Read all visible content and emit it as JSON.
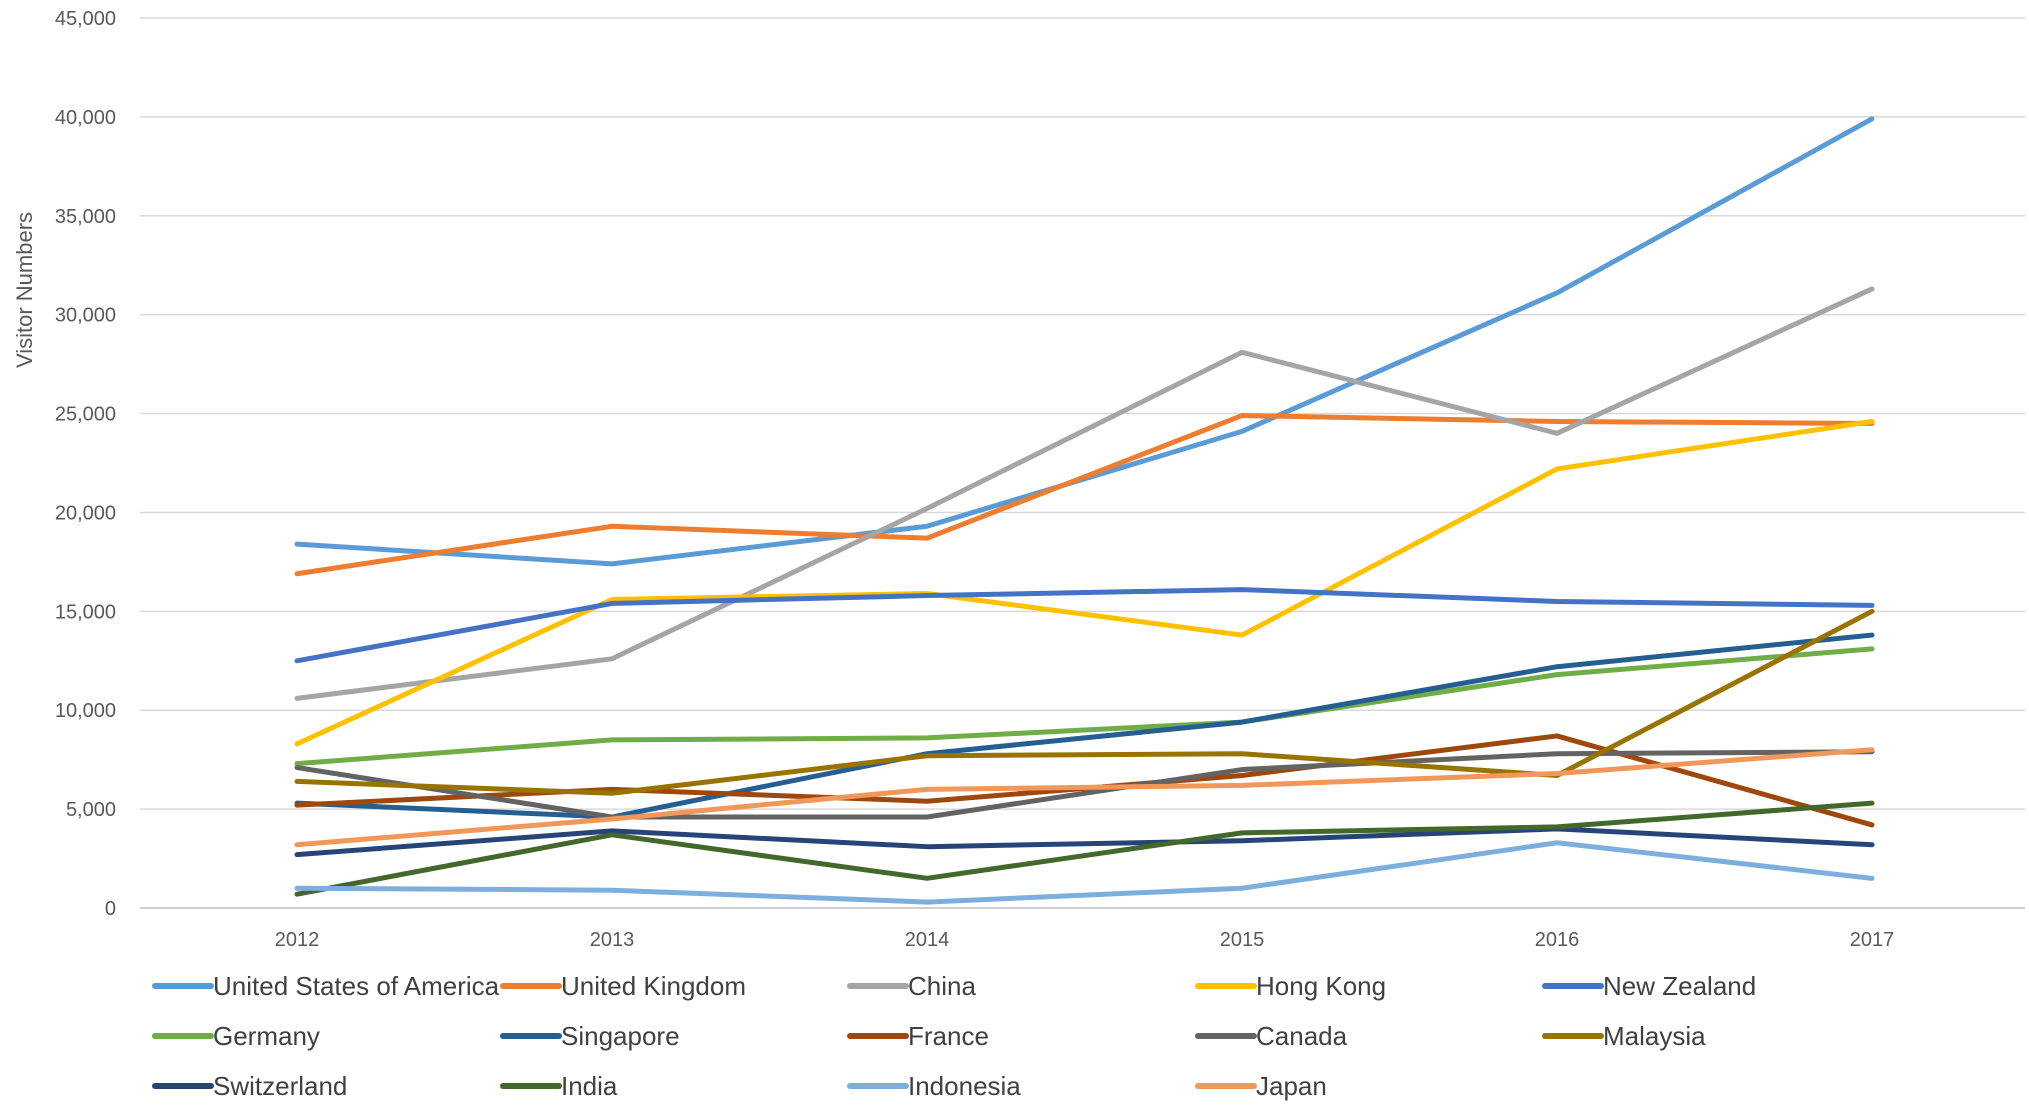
{
  "chart_data": {
    "type": "line",
    "title": "",
    "xlabel": "",
    "ylabel": "Visitor Numbers",
    "categories": [
      "2012",
      "2013",
      "2014",
      "2015",
      "2016",
      "2017"
    ],
    "ylim": [
      0,
      45000
    ],
    "yticks": [
      0,
      5000,
      10000,
      15000,
      20000,
      25000,
      30000,
      35000,
      40000,
      45000
    ],
    "ytick_labels": [
      "0",
      "5,000",
      "10,000",
      "15,000",
      "20,000",
      "25,000",
      "30,000",
      "35,000",
      "40,000",
      "45,000"
    ],
    "grid": "horizontal",
    "legend_position": "bottom",
    "series": [
      {
        "name": "United States of America",
        "color": "#5B9BD5",
        "values": [
          18400,
          17400,
          19300,
          24100,
          31100,
          39900
        ]
      },
      {
        "name": "United Kingdom",
        "color": "#ED7D31",
        "values": [
          16900,
          19300,
          18700,
          24900,
          24600,
          24500
        ]
      },
      {
        "name": "China",
        "color": "#A5A5A5",
        "values": [
          10600,
          12600,
          20200,
          28100,
          24000,
          31300
        ]
      },
      {
        "name": "Hong Kong",
        "color": "#FFC000",
        "values": [
          8300,
          15600,
          15900,
          13800,
          22200,
          24600
        ]
      },
      {
        "name": "New Zealand",
        "color": "#4472C4",
        "values": [
          12500,
          15400,
          15800,
          16100,
          15500,
          15300
        ]
      },
      {
        "name": "Germany",
        "color": "#70AD47",
        "values": [
          7300,
          8500,
          8600,
          9400,
          11800,
          13100
        ]
      },
      {
        "name": "Singapore",
        "color": "#255E91",
        "values": [
          5300,
          4600,
          7800,
          9400,
          12200,
          13800
        ]
      },
      {
        "name": "France",
        "color": "#9E480E",
        "values": [
          5200,
          6000,
          5400,
          6700,
          8700,
          4200
        ]
      },
      {
        "name": "Canada",
        "color": "#636363",
        "values": [
          7100,
          4600,
          4600,
          7000,
          7800,
          7900
        ]
      },
      {
        "name": "Malaysia",
        "color": "#997300",
        "values": [
          6400,
          5800,
          7700,
          7800,
          6700,
          15000
        ]
      },
      {
        "name": "Switzerland",
        "color": "#264478",
        "values": [
          2700,
          3900,
          3100,
          3400,
          4000,
          3200
        ]
      },
      {
        "name": "India",
        "color": "#43682B",
        "values": [
          700,
          3700,
          1500,
          3800,
          4100,
          5300
        ]
      },
      {
        "name": "Indonesia",
        "color": "#7CAFDD",
        "values": [
          1000,
          900,
          300,
          1000,
          3300,
          1500
        ]
      },
      {
        "name": "Japan",
        "color": "#F1975A",
        "values": [
          3200,
          4500,
          6000,
          6200,
          6800,
          8000
        ]
      }
    ]
  }
}
